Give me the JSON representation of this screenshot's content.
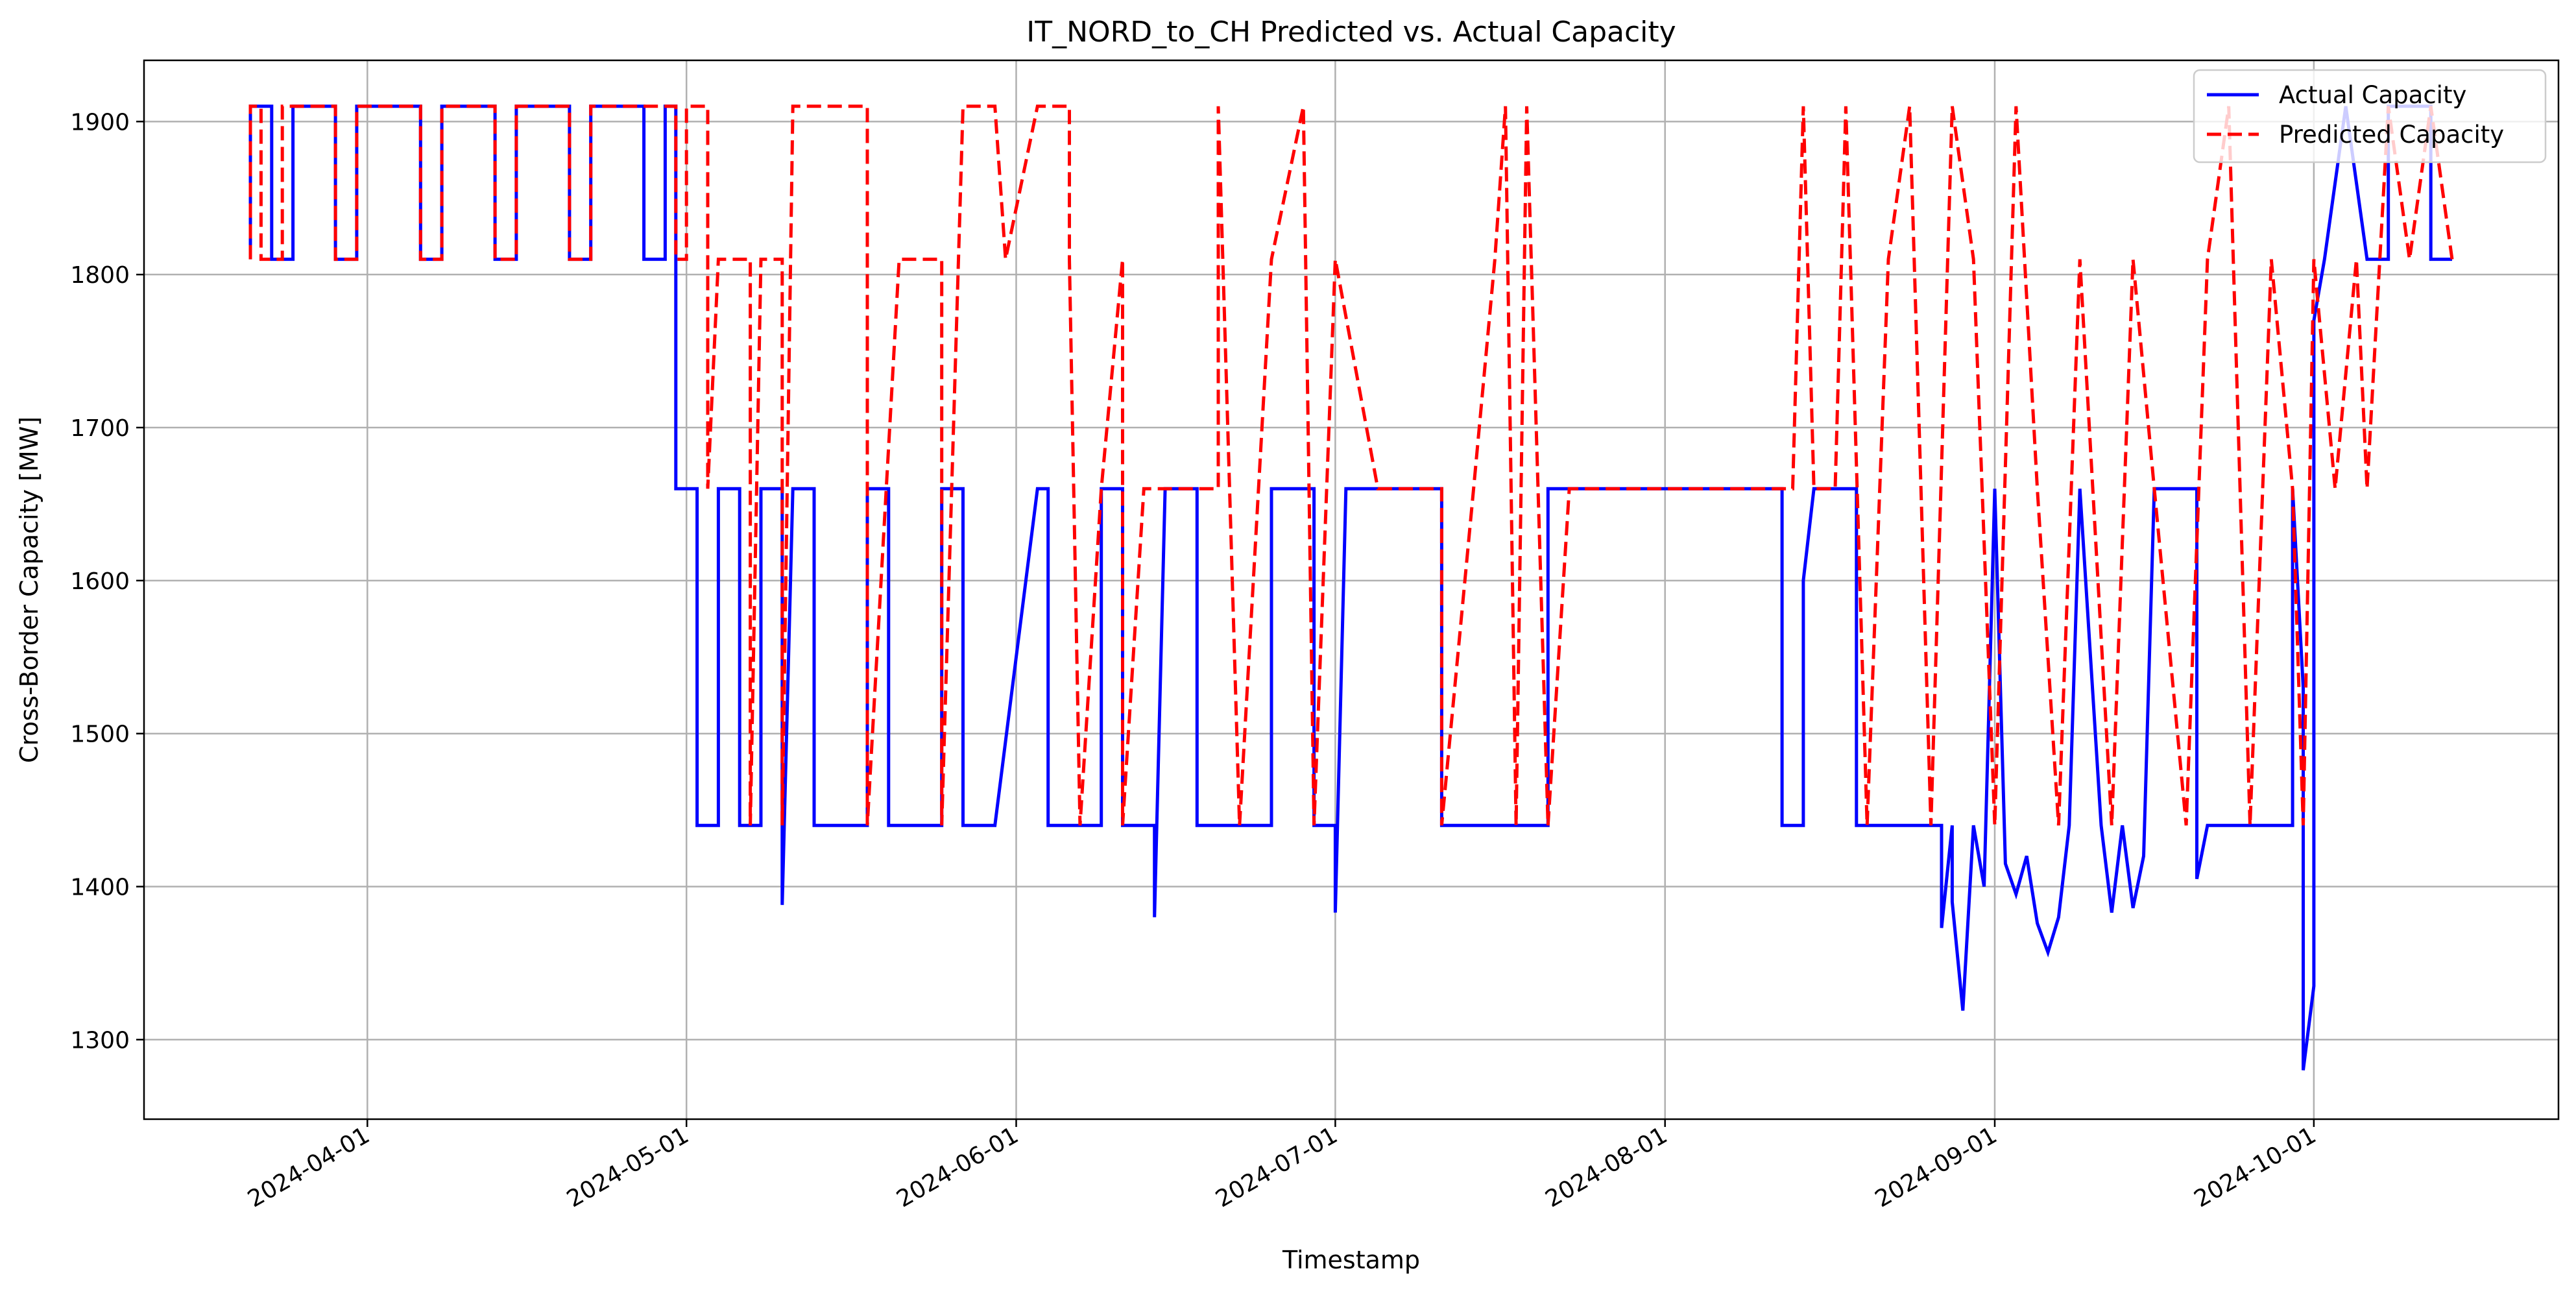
{
  "chart_data": {
    "type": "line",
    "title": "IT_NORD_to_CH Predicted vs. Actual Capacity",
    "xlabel": "Timestamp",
    "ylabel": "Cross-Border Capacity [MW]",
    "xlim": [
      "2024-03-11",
      "2024-10-24"
    ],
    "ylim": [
      1248,
      1940
    ],
    "x_ticks": [
      "2024-04-01",
      "2024-05-01",
      "2024-06-01",
      "2024-07-01",
      "2024-08-01",
      "2024-09-01",
      "2024-10-01"
    ],
    "y_ticks": [
      1300,
      1400,
      1500,
      1600,
      1700,
      1800,
      1900
    ],
    "grid": true,
    "legend_position": "top-right",
    "colors": {
      "actual": "#0000ff",
      "predicted": "#ff0000"
    },
    "series": [
      {
        "name": "Actual Capacity",
        "style": "solid",
        "color": "#0000ff",
        "levels_mw": [
          1910,
          1810,
          1660,
          1440
        ],
        "points": [
          [
            "2024-03-21",
            1810
          ],
          [
            "2024-03-21",
            1910
          ],
          [
            "2024-03-23",
            1910
          ],
          [
            "2024-03-23",
            1810
          ],
          [
            "2024-03-25",
            1810
          ],
          [
            "2024-03-25",
            1910
          ],
          [
            "2024-03-29",
            1910
          ],
          [
            "2024-03-29",
            1810
          ],
          [
            "2024-03-31",
            1810
          ],
          [
            "2024-03-31",
            1910
          ],
          [
            "2024-04-06",
            1910
          ],
          [
            "2024-04-06",
            1810
          ],
          [
            "2024-04-08",
            1810
          ],
          [
            "2024-04-08",
            1910
          ],
          [
            "2024-04-13",
            1910
          ],
          [
            "2024-04-13",
            1810
          ],
          [
            "2024-04-15",
            1810
          ],
          [
            "2024-04-15",
            1910
          ],
          [
            "2024-04-20",
            1910
          ],
          [
            "2024-04-20",
            1810
          ],
          [
            "2024-04-22",
            1810
          ],
          [
            "2024-04-22",
            1910
          ],
          [
            "2024-04-27",
            1910
          ],
          [
            "2024-04-27",
            1810
          ],
          [
            "2024-04-29",
            1810
          ],
          [
            "2024-04-29",
            1910
          ],
          [
            "2024-04-30",
            1910
          ],
          [
            "2024-04-30",
            1660
          ],
          [
            "2024-05-02",
            1660
          ],
          [
            "2024-05-02",
            1440
          ],
          [
            "2024-05-04",
            1440
          ],
          [
            "2024-05-04",
            1660
          ],
          [
            "2024-05-06",
            1660
          ],
          [
            "2024-05-06",
            1440
          ],
          [
            "2024-05-08",
            1440
          ],
          [
            "2024-05-08",
            1660
          ],
          [
            "2024-05-10",
            1660
          ],
          [
            "2024-05-10",
            1440
          ],
          [
            "2024-05-10",
            1388
          ],
          [
            "2024-05-11",
            1660
          ],
          [
            "2024-05-13",
            1660
          ],
          [
            "2024-05-13",
            1440
          ],
          [
            "2024-05-18",
            1440
          ],
          [
            "2024-05-18",
            1660
          ],
          [
            "2024-05-20",
            1660
          ],
          [
            "2024-05-20",
            1440
          ],
          [
            "2024-05-25",
            1440
          ],
          [
            "2024-05-25",
            1660
          ],
          [
            "2024-05-27",
            1660
          ],
          [
            "2024-05-27",
            1440
          ],
          [
            "2024-05-30",
            1440
          ],
          [
            "2024-06-03",
            1660
          ],
          [
            "2024-06-04",
            1660
          ],
          [
            "2024-06-04",
            1440
          ],
          [
            "2024-06-09",
            1440
          ],
          [
            "2024-06-09",
            1660
          ],
          [
            "2024-06-11",
            1660
          ],
          [
            "2024-06-11",
            1440
          ],
          [
            "2024-06-14",
            1440
          ],
          [
            "2024-06-14",
            1380
          ],
          [
            "2024-06-15",
            1660
          ],
          [
            "2024-06-18",
            1660
          ],
          [
            "2024-06-18",
            1440
          ],
          [
            "2024-06-25",
            1440
          ],
          [
            "2024-06-25",
            1660
          ],
          [
            "2024-06-29",
            1660
          ],
          [
            "2024-06-29",
            1440
          ],
          [
            "2024-07-01",
            1440
          ],
          [
            "2024-07-01",
            1383
          ],
          [
            "2024-07-02",
            1660
          ],
          [
            "2024-07-11",
            1660
          ],
          [
            "2024-07-11",
            1440
          ],
          [
            "2024-07-21",
            1440
          ],
          [
            "2024-07-21",
            1660
          ],
          [
            "2024-08-12",
            1660
          ],
          [
            "2024-08-12",
            1440
          ],
          [
            "2024-08-14",
            1440
          ],
          [
            "2024-08-14",
            1600
          ],
          [
            "2024-08-15",
            1660
          ],
          [
            "2024-08-19",
            1660
          ],
          [
            "2024-08-19",
            1440
          ],
          [
            "2024-08-27",
            1440
          ],
          [
            "2024-08-27",
            1373
          ],
          [
            "2024-08-28",
            1440
          ],
          [
            "2024-08-28",
            1390
          ],
          [
            "2024-08-29",
            1319
          ],
          [
            "2024-08-30",
            1440
          ],
          [
            "2024-08-31",
            1400
          ],
          [
            "2024-09-01",
            1660
          ],
          [
            "2024-09-02",
            1415
          ],
          [
            "2024-09-03",
            1395
          ],
          [
            "2024-09-04",
            1420
          ],
          [
            "2024-09-05",
            1376
          ],
          [
            "2024-09-06",
            1357
          ],
          [
            "2024-09-07",
            1380
          ],
          [
            "2024-09-08",
            1440
          ],
          [
            "2024-09-09",
            1660
          ],
          [
            "2024-09-11",
            1440
          ],
          [
            "2024-09-12",
            1383
          ],
          [
            "2024-09-13",
            1440
          ],
          [
            "2024-09-14",
            1386
          ],
          [
            "2024-09-15",
            1420
          ],
          [
            "2024-09-16",
            1660
          ],
          [
            "2024-09-20",
            1660
          ],
          [
            "2024-09-20",
            1405
          ],
          [
            "2024-09-21",
            1440
          ],
          [
            "2024-09-29",
            1440
          ],
          [
            "2024-09-29",
            1660
          ],
          [
            "2024-09-30",
            1530
          ],
          [
            "2024-09-30",
            1400
          ],
          [
            "2024-09-30",
            1280
          ],
          [
            "2024-10-01",
            1335
          ],
          [
            "2024-10-01",
            1770
          ],
          [
            "2024-10-02",
            1810
          ],
          [
            "2024-10-04",
            1910
          ],
          [
            "2024-10-06",
            1810
          ],
          [
            "2024-10-08",
            1810
          ],
          [
            "2024-10-08",
            1910
          ],
          [
            "2024-10-12",
            1910
          ],
          [
            "2024-10-12",
            1810
          ],
          [
            "2024-10-14",
            1810
          ]
        ]
      },
      {
        "name": "Predicted Capacity",
        "style": "dashed",
        "color": "#ff0000",
        "levels_mw": [
          1910,
          1810,
          1660,
          1440
        ],
        "points": [
          [
            "2024-03-21",
            1810
          ],
          [
            "2024-03-21",
            1910
          ],
          [
            "2024-03-22",
            1910
          ],
          [
            "2024-03-22",
            1810
          ],
          [
            "2024-03-24",
            1810
          ],
          [
            "2024-03-24",
            1910
          ],
          [
            "2024-03-29",
            1910
          ],
          [
            "2024-03-29",
            1810
          ],
          [
            "2024-03-31",
            1810
          ],
          [
            "2024-03-31",
            1910
          ],
          [
            "2024-04-06",
            1910
          ],
          [
            "2024-04-06",
            1810
          ],
          [
            "2024-04-08",
            1810
          ],
          [
            "2024-04-08",
            1910
          ],
          [
            "2024-04-13",
            1910
          ],
          [
            "2024-04-13",
            1810
          ],
          [
            "2024-04-15",
            1810
          ],
          [
            "2024-04-15",
            1910
          ],
          [
            "2024-04-20",
            1910
          ],
          [
            "2024-04-20",
            1810
          ],
          [
            "2024-04-22",
            1810
          ],
          [
            "2024-04-22",
            1910
          ],
          [
            "2024-04-30",
            1910
          ],
          [
            "2024-04-30",
            1810
          ],
          [
            "2024-05-01",
            1810
          ],
          [
            "2024-05-01",
            1910
          ],
          [
            "2024-05-03",
            1910
          ],
          [
            "2024-05-03",
            1660
          ],
          [
            "2024-05-04",
            1810
          ],
          [
            "2024-05-07",
            1810
          ],
          [
            "2024-05-07",
            1440
          ],
          [
            "2024-05-08",
            1810
          ],
          [
            "2024-05-10",
            1810
          ],
          [
            "2024-05-10",
            1440
          ],
          [
            "2024-05-11",
            1910
          ],
          [
            "2024-05-18",
            1910
          ],
          [
            "2024-05-18",
            1440
          ],
          [
            "2024-05-21",
            1810
          ],
          [
            "2024-05-25",
            1810
          ],
          [
            "2024-05-25",
            1440
          ],
          [
            "2024-05-27",
            1910
          ],
          [
            "2024-05-30",
            1910
          ],
          [
            "2024-05-31",
            1810
          ],
          [
            "2024-06-03",
            1910
          ],
          [
            "2024-06-06",
            1910
          ],
          [
            "2024-06-06",
            1810
          ],
          [
            "2024-06-07",
            1440
          ],
          [
            "2024-06-09",
            1660
          ],
          [
            "2024-06-11",
            1810
          ],
          [
            "2024-06-11",
            1440
          ],
          [
            "2024-06-13",
            1660
          ],
          [
            "2024-06-20",
            1660
          ],
          [
            "2024-06-20",
            1910
          ],
          [
            "2024-06-22",
            1440
          ],
          [
            "2024-06-25",
            1810
          ],
          [
            "2024-06-28",
            1910
          ],
          [
            "2024-06-29",
            1440
          ],
          [
            "2024-07-01",
            1810
          ],
          [
            "2024-07-05",
            1660
          ],
          [
            "2024-07-11",
            1660
          ],
          [
            "2024-07-11",
            1440
          ],
          [
            "2024-07-14",
            1660
          ],
          [
            "2024-07-16",
            1810
          ],
          [
            "2024-07-17",
            1910
          ],
          [
            "2024-07-18",
            1440
          ],
          [
            "2024-07-19",
            1910
          ],
          [
            "2024-07-21",
            1440
          ],
          [
            "2024-07-23",
            1660
          ],
          [
            "2024-08-10",
            1660
          ],
          [
            "2024-08-13",
            1660
          ],
          [
            "2024-08-14",
            1910
          ],
          [
            "2024-08-15",
            1660
          ],
          [
            "2024-08-17",
            1660
          ],
          [
            "2024-08-18",
            1910
          ],
          [
            "2024-08-20",
            1440
          ],
          [
            "2024-08-22",
            1810
          ],
          [
            "2024-08-24",
            1910
          ],
          [
            "2024-08-26",
            1440
          ],
          [
            "2024-08-28",
            1910
          ],
          [
            "2024-08-30",
            1810
          ],
          [
            "2024-09-01",
            1440
          ],
          [
            "2024-09-03",
            1910
          ],
          [
            "2024-09-05",
            1660
          ],
          [
            "2024-09-07",
            1440
          ],
          [
            "2024-09-09",
            1810
          ],
          [
            "2024-09-12",
            1440
          ],
          [
            "2024-09-14",
            1810
          ],
          [
            "2024-09-16",
            1660
          ],
          [
            "2024-09-19",
            1440
          ],
          [
            "2024-09-21",
            1810
          ],
          [
            "2024-09-23",
            1910
          ],
          [
            "2024-09-25",
            1440
          ],
          [
            "2024-09-27",
            1810
          ],
          [
            "2024-09-29",
            1660
          ],
          [
            "2024-09-30",
            1440
          ],
          [
            "2024-10-01",
            1810
          ],
          [
            "2024-10-03",
            1660
          ],
          [
            "2024-10-05",
            1810
          ],
          [
            "2024-10-06",
            1660
          ],
          [
            "2024-10-08",
            1910
          ],
          [
            "2024-10-10",
            1810
          ],
          [
            "2024-10-12",
            1910
          ],
          [
            "2024-10-14",
            1810
          ]
        ]
      }
    ]
  }
}
